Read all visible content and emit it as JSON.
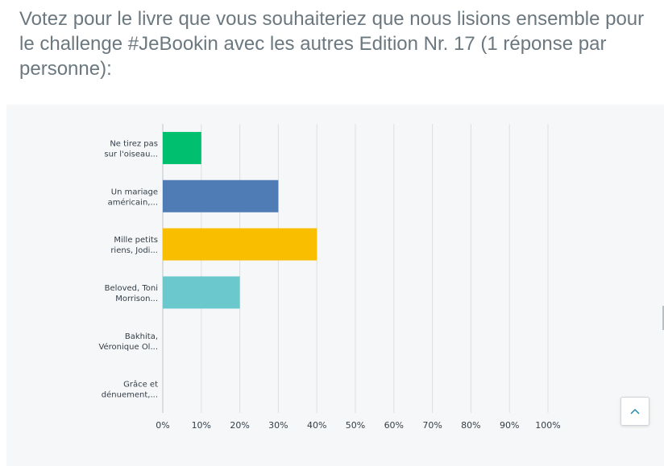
{
  "question": {
    "text": "Votez pour le livre que vous souhaiteriez que nous lisions ensemble pour le challenge #JeBookin avec les autres Edition Nr. 17 (1 réponse par personne):"
  },
  "colors": {
    "grid": "#dcdfe2",
    "axis": "#bfc5ca",
    "question_text": "#6b787f"
  },
  "scroll_top_button": {
    "icon": "chevron-up-icon"
  },
  "chart_data": {
    "type": "bar",
    "orientation": "horizontal",
    "categories": [
      [
        "Ne tirez pas",
        "sur l'oiseau..."
      ],
      [
        "Un mariage",
        "américain,..."
      ],
      [
        "Mille petits",
        "riens, Jodi..."
      ],
      [
        "Beloved, Toni",
        "Morrison..."
      ],
      [
        "Bakhita,",
        "Véronique Ol..."
      ],
      [
        "Grâce et",
        "dénuement,..."
      ]
    ],
    "values": [
      10,
      30,
      40,
      20,
      0,
      0
    ],
    "colors": [
      "#00bf6f",
      "#507cb6",
      "#f9be00",
      "#6bc8cd",
      "#ff8b4f",
      "#7d6bb3"
    ],
    "xlim": [
      0,
      100
    ],
    "xticks": [
      "0%",
      "10%",
      "20%",
      "30%",
      "40%",
      "50%",
      "60%",
      "70%",
      "80%",
      "90%",
      "100%"
    ],
    "grid": true,
    "legend": "none"
  }
}
